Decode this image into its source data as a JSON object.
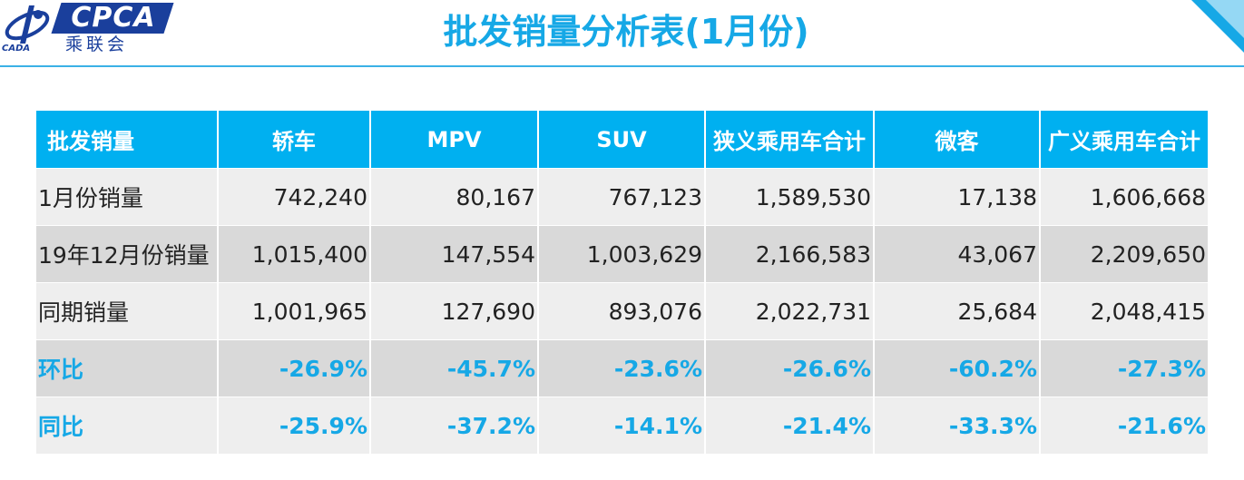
{
  "logo": {
    "brand": "CPCA",
    "cn_name": "乘联会",
    "sub": "CADA"
  },
  "title": "批发销量分析表(1月份)",
  "colors": {
    "accent": "#00b0f0",
    "title": "#16a8e6",
    "logo_blue": "#1a3f9c"
  },
  "table": {
    "headers": [
      "批发销量",
      "轿车",
      "MPV",
      "SUV",
      "狭义乘用车合计",
      "微客",
      "广义乘用车合计"
    ],
    "rows": [
      {
        "label": "1月份销量",
        "values": [
          "742,240",
          "80,167",
          "767,123",
          "1,589,530",
          "17,138",
          "1,606,668"
        ]
      },
      {
        "label": "19年12月份销量",
        "values": [
          "1,015,400",
          "147,554",
          "1,003,629",
          "2,166,583",
          "43,067",
          "2,209,650"
        ]
      },
      {
        "label": "同期销量",
        "values": [
          "1,001,965",
          "127,690",
          "893,076",
          "2,022,731",
          "25,684",
          "2,048,415"
        ]
      },
      {
        "label": "环比",
        "values": [
          "-26.9%",
          "-45.7%",
          "-23.6%",
          "-26.6%",
          "-60.2%",
          "-27.3%"
        ]
      },
      {
        "label": "同比",
        "values": [
          "-25.9%",
          "-37.2%",
          "-14.1%",
          "-21.4%",
          "-33.3%",
          "-21.6%"
        ]
      }
    ]
  }
}
